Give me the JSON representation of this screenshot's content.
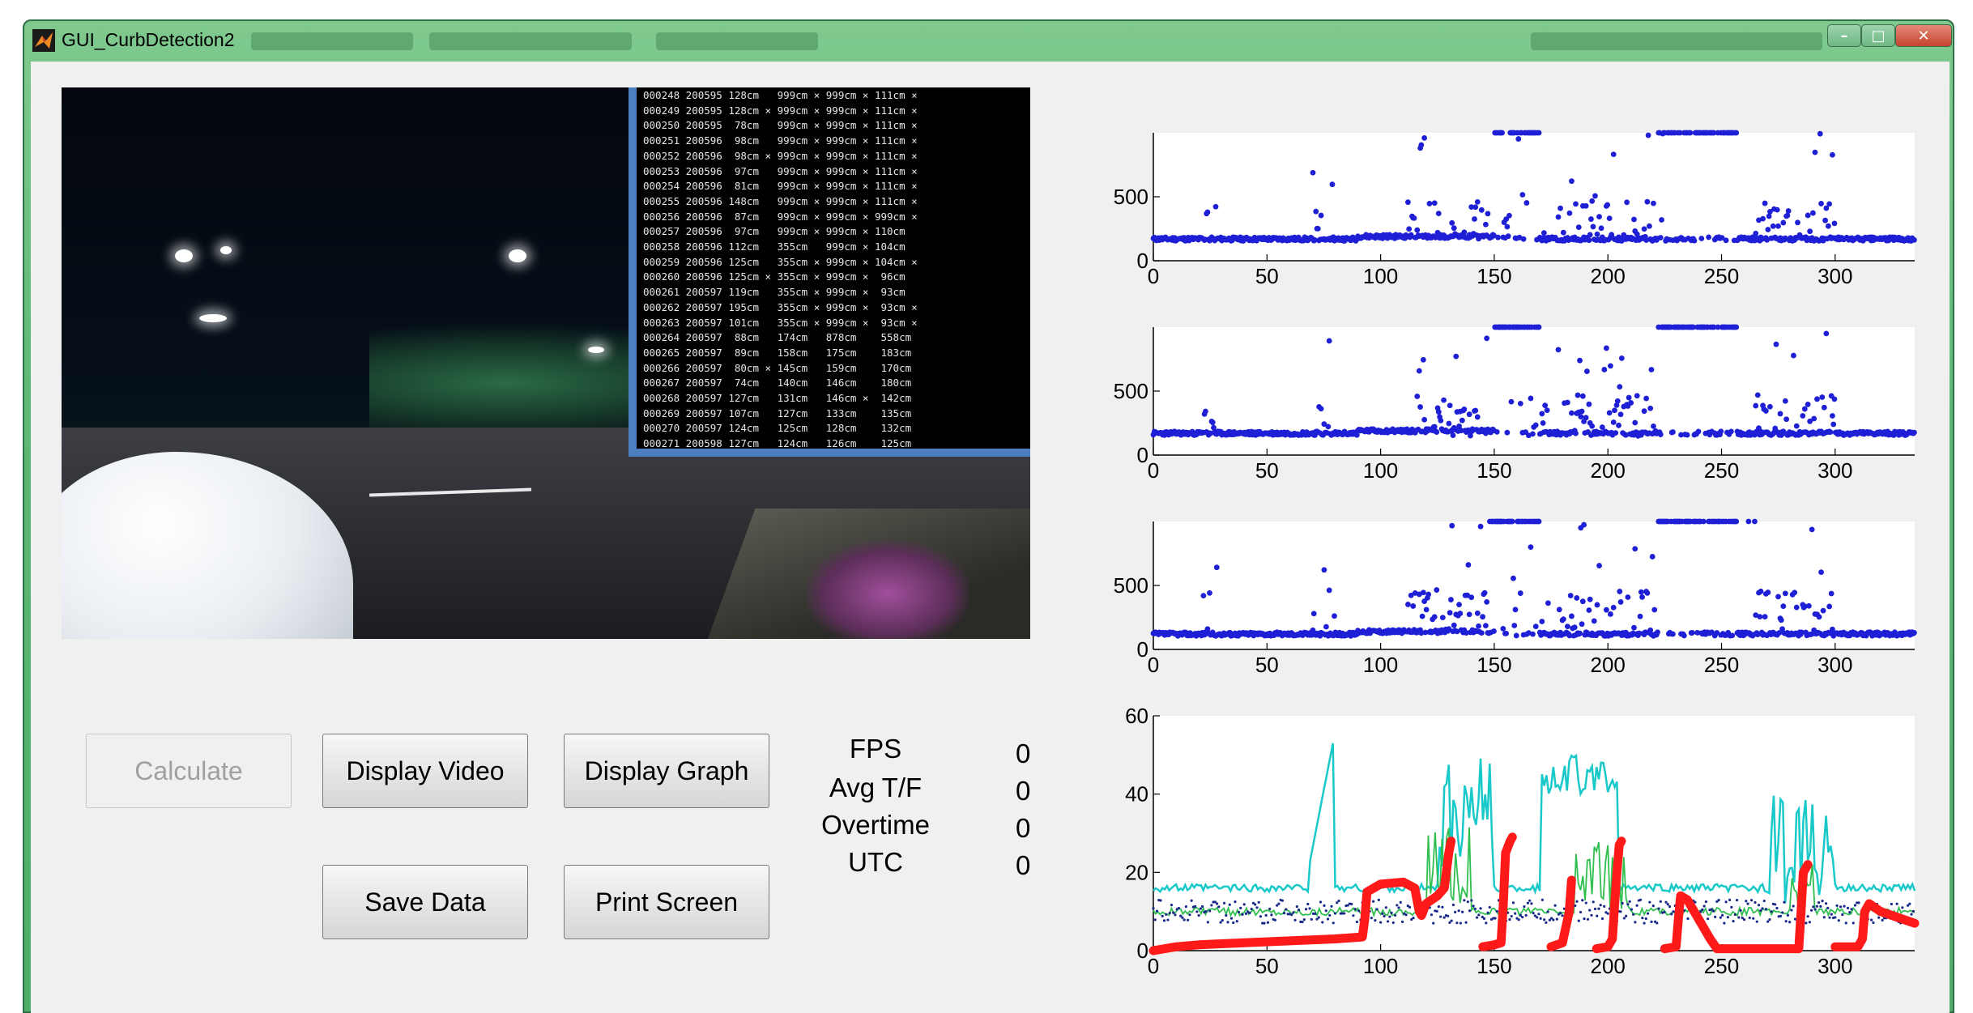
{
  "window": {
    "title": "GUI_CurbDetection2",
    "controls": {
      "minimize": "–",
      "maximize": "□",
      "close": "✕"
    }
  },
  "video_overlay": {
    "lines": [
      "000248 200595 128cm   999cm × 999cm × 111cm ×",
      "000249 200595 128cm × 999cm × 999cm × 111cm ×",
      "000250 200595  78cm   999cm × 999cm × 111cm ×",
      "000251 200596  98cm   999cm × 999cm × 111cm ×",
      "000252 200596  98cm × 999cm × 999cm × 111cm ×",
      "000253 200596  97cm   999cm × 999cm × 111cm ×",
      "000254 200596  81cm   999cm × 999cm × 111cm ×",
      "000255 200596 148cm   999cm × 999cm × 111cm ×",
      "000256 200596  87cm   999cm × 999cm × 999cm ×",
      "000257 200596  97cm   999cm × 999cm × 110cm",
      "000258 200596 112cm   355cm   999cm × 104cm",
      "000259 200596 125cm   355cm × 999cm × 104cm ×",
      "000260 200596 125cm × 355cm × 999cm ×  96cm",
      "000261 200597 119cm   355cm × 999cm ×  93cm",
      "000262 200597 195cm   355cm × 999cm ×  93cm ×",
      "000263 200597 101cm   355cm × 999cm ×  93cm ×",
      "000264 200597  88cm   174cm   878cm    558cm",
      "000265 200597  89cm   158cm   175cm    183cm",
      "000266 200597  80cm × 145cm   159cm    170cm",
      "000267 200597  74cm   140cm   146cm    180cm",
      "000268 200597 127cm   131cm   146cm ×  142cm",
      "000269 200597 107cm   127cm   133cm    135cm",
      "000270 200597 124cm   125cm   128cm    132cm",
      "000271 200598 127cm   124cm   126cm    125cm"
    ]
  },
  "buttons": {
    "calculate": "Calculate",
    "display_video": "Display Video",
    "display_graph": "Display Graph",
    "save_data": "Save Data",
    "print_screen": "Print Screen"
  },
  "stats": [
    {
      "label": "FPS",
      "value": "0"
    },
    {
      "label": "Avg T/F",
      "value": "0"
    },
    {
      "label": "Overtime",
      "value": "0"
    },
    {
      "label": "UTC",
      "value": "0"
    }
  ],
  "colors": {
    "scatter": "#1f1fd6",
    "red_trace": "#ff1a1a",
    "cyan_trace": "#19c9c9",
    "green_trace": "#2fbf4f",
    "navy_trace": "#1a2a8a"
  },
  "chart_data": [
    {
      "type": "scatter",
      "xlim": [
        0,
        335
      ],
      "ylim": [
        0,
        1000
      ],
      "xticks": [
        0,
        50,
        100,
        150,
        200,
        250,
        300
      ],
      "yticks": [
        0,
        500
      ],
      "seed": 11,
      "series": [
        {
          "values_profile": "baseline ~170 with bursts up to ~1000 near x=25,75,120-145,150-175,180-225,270-300"
        }
      ]
    },
    {
      "type": "scatter",
      "xlim": [
        0,
        335
      ],
      "ylim": [
        0,
        1000
      ],
      "xticks": [
        0,
        50,
        100,
        150,
        200,
        250,
        300
      ],
      "yticks": [
        0,
        500
      ],
      "seed": 23,
      "series": [
        {
          "values_profile": "baseline ~170 with bursts up to ~1000 near x=25,75,120-145,150-175,180-225,270-300"
        }
      ]
    },
    {
      "type": "scatter",
      "xlim": [
        0,
        335
      ],
      "ylim": [
        0,
        1000
      ],
      "xticks": [
        0,
        50,
        100,
        150,
        200,
        250,
        300
      ],
      "yticks": [
        0,
        500
      ],
      "seed": 37,
      "series": [
        {
          "values_profile": "baseline ~120 with bursts up to ~1000 near x=25,75,120-145,150-175,180-225,270-300"
        }
      ]
    },
    {
      "type": "line",
      "xlim": [
        0,
        335
      ],
      "ylim": [
        0,
        60
      ],
      "xticks": [
        0,
        50,
        100,
        150,
        200,
        250,
        300
      ],
      "yticks": [
        0,
        20,
        40,
        60
      ],
      "series": [
        {
          "style": "thick",
          "segments": [
            [
              [
                0,
                0
              ],
              [
                10,
                1
              ],
              [
                20,
                1.5
              ],
              [
                40,
                2
              ],
              [
                60,
                2.5
              ],
              [
                80,
                3
              ],
              [
                92,
                3.5
              ],
              [
                93,
                8
              ],
              [
                94,
                15
              ],
              [
                100,
                17
              ],
              [
                110,
                17.5
              ],
              [
                115,
                16
              ],
              [
                117,
                10
              ],
              [
                118,
                9
              ],
              [
                120,
                12
              ],
              [
                125,
                14
              ],
              [
                128,
                16
              ],
              [
                130,
                25
              ],
              [
                131,
                28
              ]
            ],
            [
              [
                145,
                1
              ],
              [
                150,
                1.5
              ],
              [
                153,
                2
              ],
              [
                154,
                12
              ],
              [
                155,
                25
              ],
              [
                157,
                28
              ],
              [
                158,
                29
              ]
            ],
            [
              [
                175,
                1
              ],
              [
                180,
                2
              ],
              [
                183,
                10
              ],
              [
                184,
                18
              ]
            ],
            [
              [
                195,
                0.5
              ],
              [
                200,
                1
              ],
              [
                202,
                3
              ],
              [
                203,
                12
              ],
              [
                204,
                20
              ],
              [
                205,
                27
              ],
              [
                206,
                28
              ]
            ],
            [
              [
                225,
                0.5
              ],
              [
                230,
                1
              ],
              [
                231,
                8
              ],
              [
                232,
                14
              ],
              [
                235,
                13
              ],
              [
                238,
                10
              ],
              [
                240,
                8
              ],
              [
                245,
                3
              ],
              [
                248,
                0.5
              ],
              [
                260,
                0.5
              ],
              [
                270,
                0.5
              ],
              [
                284,
                0.5
              ],
              [
                285,
                10
              ],
              [
                286,
                20
              ],
              [
                288,
                22
              ]
            ],
            [
              [
                300,
                1
              ],
              [
                310,
                1
              ],
              [
                312,
                3
              ],
              [
                313,
                10
              ],
              [
                315,
                12
              ],
              [
                320,
                10
              ],
              [
                325,
                9
              ],
              [
                335,
                7
              ]
            ]
          ]
        },
        {
          "style": "thin",
          "profile": "baseline ~16 with peaks to ~50 near x=75,125,135-150,170-200,270-300"
        },
        {
          "style": "thin",
          "profile": "baseline ~10 with peaks near x=75,125,190-210,285"
        },
        {
          "style": "dotted",
          "profile": "scattered around ~8-12"
        }
      ]
    }
  ]
}
